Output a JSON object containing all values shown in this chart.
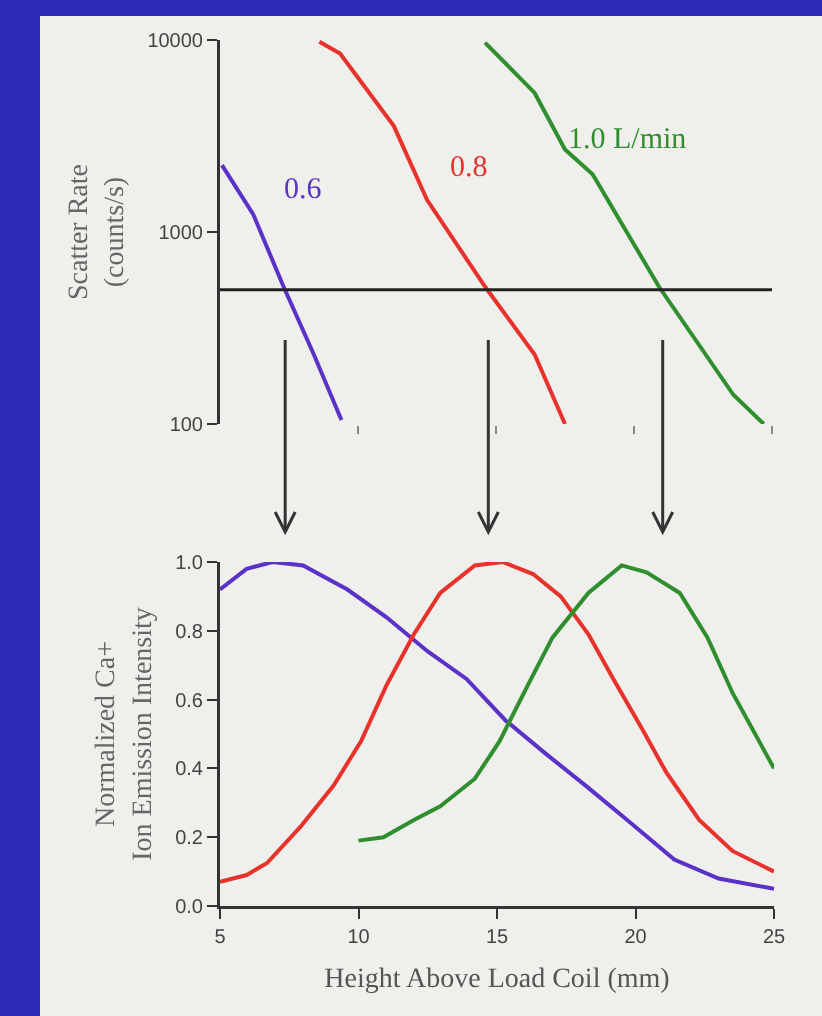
{
  "chart_data": [
    {
      "type": "line",
      "ylabel": "Scatter Rate\n(counts/s)",
      "log": true,
      "ylim": [
        100,
        10000
      ],
      "yticks": [
        100,
        1000,
        10000
      ],
      "xlim": [
        5,
        25
      ],
      "xticks": [
        {
          "value": 10,
          "label": null
        },
        {
          "value": 15,
          "label": null
        },
        {
          "value": 20,
          "label": null
        },
        {
          "value": 25,
          "label": null
        }
      ],
      "tick_labels": "y",
      "legend": false,
      "line_style": "solid",
      "marker": "none",
      "ref_lines": [
        {
          "axis": "y",
          "value": 500,
          "color": "#222222"
        }
      ],
      "series": [
        {
          "name": "0.6",
          "color": "#5a32c8",
          "x": [
            5.07,
            6.2,
            7.3,
            8.4,
            9.4
          ],
          "values": [
            2230,
            1240,
            520,
            230,
            105
          ]
        },
        {
          "name": "0.8",
          "color": "#e8322b",
          "x": [
            8.6,
            9.35,
            11.3,
            12.5,
            14.6,
            16.4,
            17.5
          ],
          "values": [
            9800,
            8500,
            3560,
            1470,
            520,
            230,
            100
          ]
        },
        {
          "name": "1.0 L/min",
          "color": "#2f8f2f",
          "x": [
            14.6,
            16.4,
            17.5,
            18.5,
            20.9,
            23.6,
            24.7
          ],
          "values": [
            9700,
            5300,
            2690,
            2000,
            520,
            142,
            100
          ]
        }
      ]
    },
    {
      "type": "line",
      "xlabel": "Height Above Load Coil (mm)",
      "ylabel": "Normalized Ca+\nIon Emission Intensity",
      "ylim": [
        0,
        1
      ],
      "yticks": [
        {
          "value": 0,
          "label": "0.0"
        },
        0.2,
        0.4,
        0.6,
        0.8,
        {
          "value": 1,
          "label": "1.0"
        }
      ],
      "xlim": [
        5,
        25
      ],
      "xticks": [
        5,
        10,
        15,
        20,
        25
      ],
      "legend": false,
      "line_style": "solid",
      "marker": "none",
      "series": [
        {
          "color": "#5a32c8",
          "x": [
            5,
            5.96,
            6.9,
            8.0,
            9.6,
            11.0,
            12.5,
            13.9,
            15.3,
            16.8,
            18.2,
            19.7,
            21.4,
            23.0,
            25
          ],
          "values": [
            0.92,
            0.98,
            1.0,
            0.99,
            0.92,
            0.84,
            0.74,
            0.66,
            0.54,
            0.44,
            0.35,
            0.25,
            0.135,
            0.08,
            0.05
          ]
        },
        {
          "color": "#e8322b",
          "x": [
            5,
            5.96,
            6.7,
            7.9,
            9.1,
            10.1,
            11.0,
            12.0,
            12.95,
            14.2,
            15.2,
            16.3,
            17.3,
            18.3,
            19.2,
            20.2,
            21.1,
            22.3,
            23.5,
            25
          ],
          "values": [
            0.07,
            0.09,
            0.125,
            0.23,
            0.35,
            0.48,
            0.64,
            0.79,
            0.91,
            0.99,
            1.0,
            0.965,
            0.9,
            0.79,
            0.66,
            0.52,
            0.39,
            0.25,
            0.16,
            0.1
          ]
        },
        {
          "color": "#2f8f2f",
          "x": [
            10.0,
            10.9,
            12.0,
            12.95,
            14.2,
            15.1,
            16.1,
            17.0,
            18.3,
            19.5,
            20.4,
            21.6,
            22.6,
            23.5,
            25
          ],
          "values": [
            0.19,
            0.2,
            0.25,
            0.29,
            0.37,
            0.48,
            0.64,
            0.78,
            0.91,
            0.99,
            0.97,
            0.91,
            0.78,
            0.62,
            0.4
          ]
        }
      ]
    }
  ]
}
